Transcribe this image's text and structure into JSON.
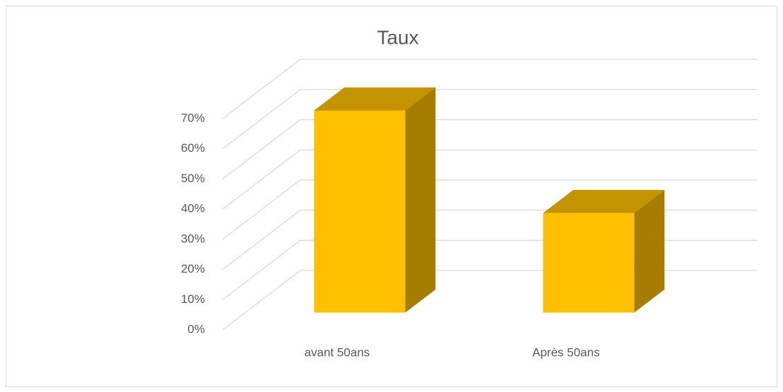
{
  "chart_data": {
    "type": "bar3d",
    "title": "Taux",
    "categories": [
      "avant 50ans",
      "Après 50ans"
    ],
    "values": [
      67,
      33
    ],
    "color": "#ffc000",
    "ylim": [
      0,
      70
    ],
    "yticks": [
      {
        "value": 0,
        "label": "0%"
      },
      {
        "value": 10,
        "label": "10%"
      },
      {
        "value": 20,
        "label": "20%"
      },
      {
        "value": 30,
        "label": "30%"
      },
      {
        "value": 40,
        "label": "40%"
      },
      {
        "value": 50,
        "label": "50%"
      },
      {
        "value": 60,
        "label": "60%"
      },
      {
        "value": 70,
        "label": "70%"
      }
    ],
    "grid": true
  }
}
